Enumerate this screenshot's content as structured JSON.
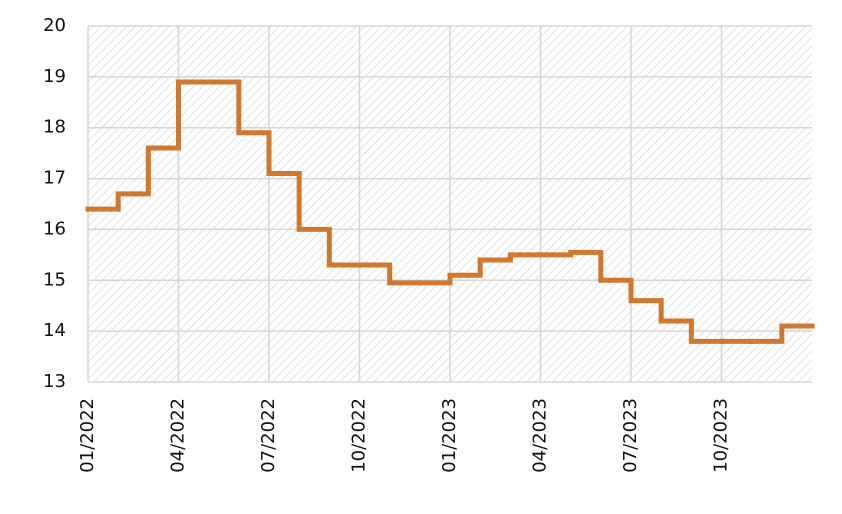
{
  "chart_data": {
    "type": "step",
    "categories": [
      "01/2022",
      null,
      null,
      "04/2022",
      null,
      null,
      "07/2022",
      null,
      null,
      "10/2022",
      null,
      null,
      "01/2023",
      null,
      null,
      "04/2023",
      null,
      null,
      "07/2023",
      null,
      null,
      "10/2023",
      null,
      null
    ],
    "series": [
      {
        "color": "#d0782f",
        "values": [
          16.4,
          16.7,
          17.6,
          18.9,
          18.9,
          17.9,
          17.1,
          16.0,
          15.3,
          15.3,
          14.95,
          14.95,
          15.1,
          15.4,
          15.5,
          15.5,
          15.55,
          15.0,
          14.6,
          14.2,
          13.8,
          13.8,
          13.8,
          14.1
        ]
      }
    ],
    "ylim": [
      13,
      20
    ],
    "yticks": [
      13,
      14,
      15,
      16,
      17,
      18,
      19,
      20
    ],
    "grid": true
  }
}
